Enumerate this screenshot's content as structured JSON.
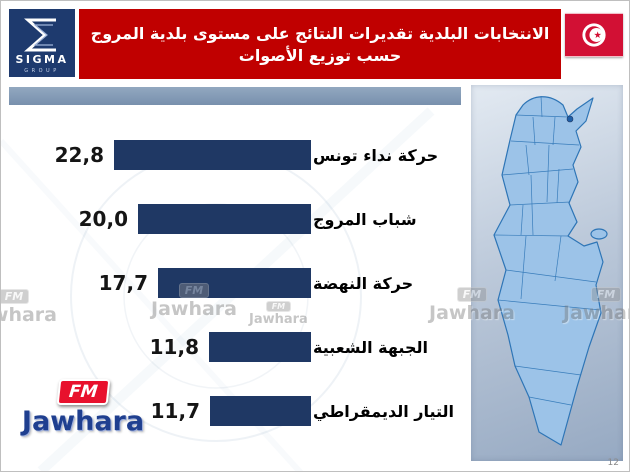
{
  "header": {
    "title_line1": "الانتخابات البلدية تقديرات النتائج على مستوى بلدية المروج",
    "title_line2": "حسب توزيع الأصوات",
    "banner_color": "#C00000"
  },
  "logos": {
    "sigma": {
      "name": "SIGMA",
      "sub": "GROUP"
    },
    "jawhara": {
      "fm": "FM",
      "station": "Jawhara"
    }
  },
  "watermark": {
    "fm": "FM",
    "station": "Jawhara"
  },
  "chart_data": {
    "type": "bar",
    "orientation": "horizontal_rtl",
    "title": "الانتخابات البلدية تقديرات النتائج على مستوى بلدية المروج حسب توزيع الأصوات",
    "categories": [
      "حركة نداء تونس",
      "شباب المروج",
      "حركة النهضة",
      "الجبهة الشعبية",
      "التيار الديمقراطي"
    ],
    "values": [
      22.8,
      20.0,
      17.7,
      11.8,
      11.7
    ],
    "display_values": [
      "22,8",
      "20,0",
      "17,7",
      "11,8",
      "11,7"
    ],
    "xlim": [
      0,
      23
    ],
    "bar_color": "#1F3864",
    "legend": false,
    "grid": false
  },
  "map": {
    "region": "Tunisia",
    "fill": "#9CC3E8",
    "stroke": "#2E75B6"
  },
  "slide": {
    "page_number": "12"
  },
  "colors": {
    "band": "#7C95B4",
    "flag_red": "#D21034",
    "sigma_navy": "#1E3A6E",
    "jawhara_blue": "#1F3F8F",
    "jawhara_red": "#E8112D"
  }
}
